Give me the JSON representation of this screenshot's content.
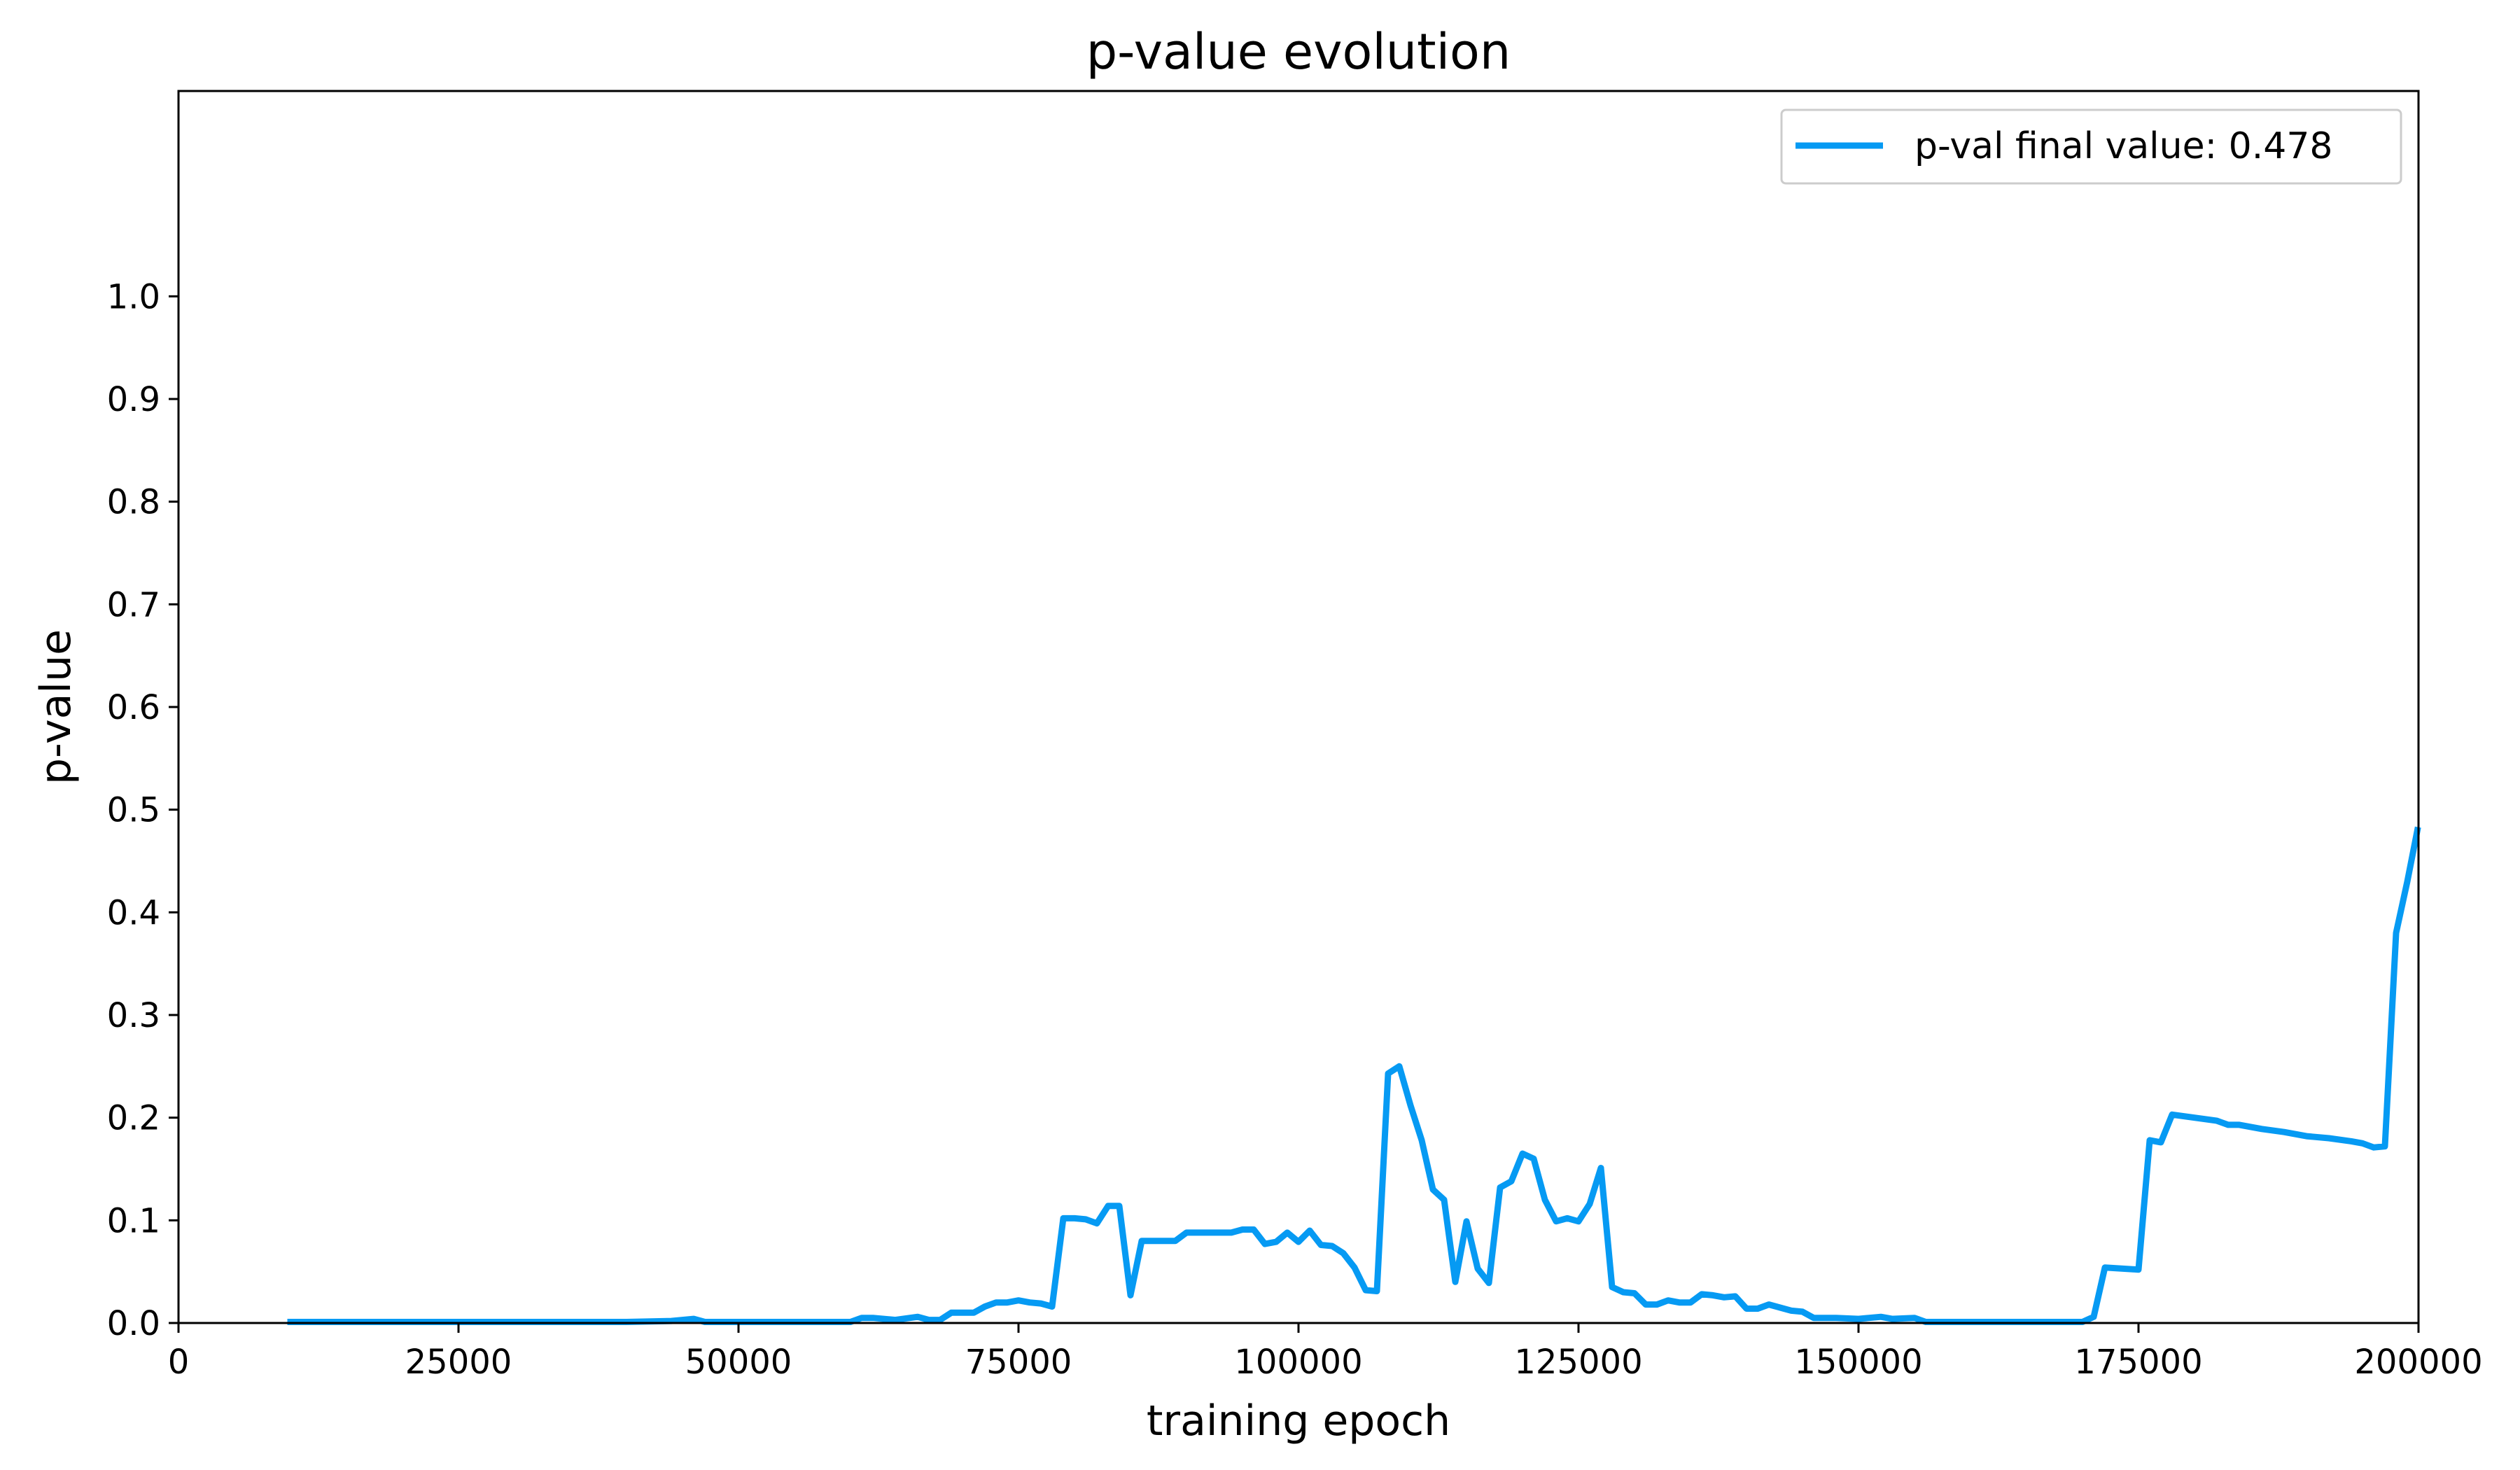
{
  "chart_data": {
    "type": "line",
    "title": "p-value evolution",
    "xlabel": "training epoch",
    "ylabel": "p-value",
    "xlim": [
      0,
      200000
    ],
    "ylim": [
      0,
      1.2
    ],
    "x_ticks": [
      0,
      25000,
      50000,
      75000,
      100000,
      125000,
      150000,
      175000,
      200000
    ],
    "y_ticks": [
      0.0,
      0.1,
      0.2,
      0.3,
      0.4,
      0.5,
      0.6,
      0.7,
      0.8,
      0.9,
      1.0
    ],
    "y_tick_labels": [
      "0.0",
      "0.1",
      "0.2",
      "0.3",
      "0.4",
      "0.5",
      "0.6",
      "0.7",
      "0.8",
      "0.9",
      "1.0"
    ],
    "grid": false,
    "legend_position": "top-right",
    "series": [
      {
        "name": "p-val final value: 0.478",
        "color": "#069af3",
        "points": [
          [
            10000,
            0.001
          ],
          [
            20000,
            0.001
          ],
          [
            30000,
            0.001
          ],
          [
            40000,
            0.001
          ],
          [
            44000,
            0.002
          ],
          [
            46000,
            0.004
          ],
          [
            47000,
            0.001
          ],
          [
            55000,
            0.001
          ],
          [
            60000,
            0.001
          ],
          [
            61000,
            0.005
          ],
          [
            62000,
            0.005
          ],
          [
            64000,
            0.003
          ],
          [
            66000,
            0.006
          ],
          [
            67000,
            0.003
          ],
          [
            68000,
            0.003
          ],
          [
            69000,
            0.01
          ],
          [
            71000,
            0.01
          ],
          [
            72000,
            0.016
          ],
          [
            73000,
            0.02
          ],
          [
            74000,
            0.02
          ],
          [
            75000,
            0.022
          ],
          [
            76000,
            0.02
          ],
          [
            77000,
            0.019
          ],
          [
            78000,
            0.016
          ],
          [
            79000,
            0.102
          ],
          [
            80000,
            0.102
          ],
          [
            81000,
            0.101
          ],
          [
            82000,
            0.097
          ],
          [
            83000,
            0.114
          ],
          [
            84000,
            0.114
          ],
          [
            85000,
            0.027
          ],
          [
            86000,
            0.08
          ],
          [
            87000,
            0.08
          ],
          [
            88000,
            0.08
          ],
          [
            89000,
            0.08
          ],
          [
            90000,
            0.088
          ],
          [
            91000,
            0.088
          ],
          [
            92000,
            0.088
          ],
          [
            93000,
            0.088
          ],
          [
            94000,
            0.088
          ],
          [
            95000,
            0.091
          ],
          [
            96000,
            0.091
          ],
          [
            97000,
            0.077
          ],
          [
            98000,
            0.079
          ],
          [
            99000,
            0.088
          ],
          [
            100000,
            0.079
          ],
          [
            101000,
            0.09
          ],
          [
            102000,
            0.076
          ],
          [
            103000,
            0.075
          ],
          [
            104000,
            0.068
          ],
          [
            105000,
            0.054
          ],
          [
            106000,
            0.032
          ],
          [
            107000,
            0.031
          ],
          [
            108000,
            0.243
          ],
          [
            109000,
            0.25
          ],
          [
            110000,
            0.212
          ],
          [
            111000,
            0.178
          ],
          [
            112000,
            0.13
          ],
          [
            113000,
            0.12
          ],
          [
            114000,
            0.04
          ],
          [
            115000,
            0.099
          ],
          [
            116000,
            0.053
          ],
          [
            117000,
            0.039
          ],
          [
            118000,
            0.132
          ],
          [
            119000,
            0.138
          ],
          [
            120000,
            0.165
          ],
          [
            121000,
            0.16
          ],
          [
            122000,
            0.12
          ],
          [
            123000,
            0.099
          ],
          [
            124000,
            0.102
          ],
          [
            125000,
            0.099
          ],
          [
            126000,
            0.116
          ],
          [
            127000,
            0.151
          ],
          [
            128000,
            0.035
          ],
          [
            129000,
            0.03
          ],
          [
            130000,
            0.029
          ],
          [
            131000,
            0.018
          ],
          [
            132000,
            0.018
          ],
          [
            133000,
            0.022
          ],
          [
            134000,
            0.02
          ],
          [
            135000,
            0.02
          ],
          [
            136000,
            0.028
          ],
          [
            137000,
            0.027
          ],
          [
            138000,
            0.025
          ],
          [
            139000,
            0.026
          ],
          [
            140000,
            0.014
          ],
          [
            141000,
            0.014
          ],
          [
            142000,
            0.018
          ],
          [
            143000,
            0.015
          ],
          [
            144000,
            0.012
          ],
          [
            145000,
            0.011
          ],
          [
            146000,
            0.005
          ],
          [
            148000,
            0.005
          ],
          [
            150000,
            0.004
          ],
          [
            152000,
            0.006
          ],
          [
            153000,
            0.004
          ],
          [
            155000,
            0.005
          ],
          [
            156000,
            0.001
          ],
          [
            170000,
            0.001
          ],
          [
            171000,
            0.006
          ],
          [
            172000,
            0.054
          ],
          [
            175000,
            0.052
          ],
          [
            176000,
            0.178
          ],
          [
            177000,
            0.176
          ],
          [
            178000,
            0.203
          ],
          [
            180000,
            0.2
          ],
          [
            182000,
            0.197
          ],
          [
            183000,
            0.193
          ],
          [
            184000,
            0.193
          ],
          [
            186000,
            0.189
          ],
          [
            188000,
            0.186
          ],
          [
            190000,
            0.182
          ],
          [
            192000,
            0.18
          ],
          [
            194000,
            0.177
          ],
          [
            195000,
            0.175
          ],
          [
            196000,
            0.171
          ],
          [
            197000,
            0.172
          ],
          [
            198000,
            0.38
          ],
          [
            199000,
            0.43
          ],
          [
            199900,
            0.48
          ]
        ]
      }
    ]
  }
}
